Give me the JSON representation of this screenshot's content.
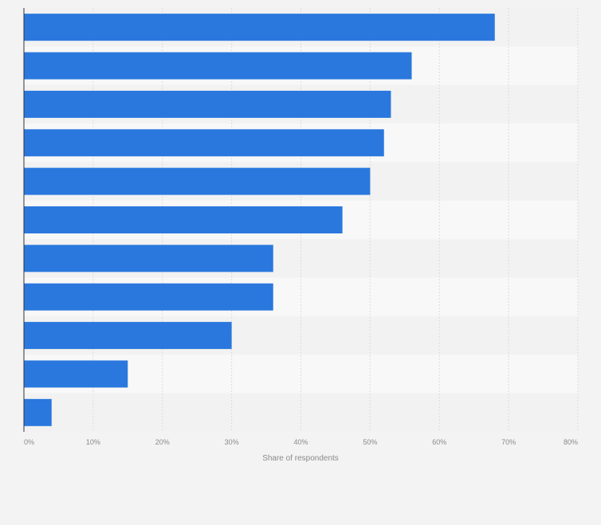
{
  "chart_data": {
    "type": "bar",
    "orientation": "horizontal",
    "categories": [
      "",
      "",
      "",
      "",
      "",
      "",
      "",
      "",
      "",
      "",
      ""
    ],
    "values": [
      68,
      56,
      53,
      52,
      50,
      46,
      36,
      36,
      30,
      15,
      4
    ],
    "xlabel": "Share of respondents",
    "ylabel": "",
    "xlim": [
      0,
      80
    ],
    "ticks": [
      0,
      10,
      20,
      30,
      40,
      50,
      60,
      70,
      80
    ],
    "tick_labels": [
      "0%",
      "10%",
      "20%",
      "30%",
      "40%",
      "50%",
      "60%",
      "70%",
      "80%"
    ],
    "grid": true,
    "colors": {
      "bar": "#2a78de",
      "background": "#f3f3f3",
      "band_light": "#f8f8f8",
      "band_dark": "#f2f2f2",
      "gridline": "#dcdcdc",
      "axis": "#333333"
    }
  }
}
